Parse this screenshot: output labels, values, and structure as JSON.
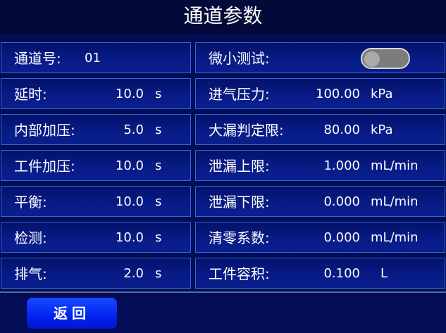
{
  "title": "通道参数",
  "left": [
    {
      "label": "通道号:",
      "value": "01",
      "unit": ""
    },
    {
      "label": "延时:",
      "value": "10.0",
      "unit": "s"
    },
    {
      "label": "内部加压:",
      "value": "5.0",
      "unit": "s"
    },
    {
      "label": "工件加压:",
      "value": "10.0",
      "unit": "s"
    },
    {
      "label": "平衡:",
      "value": "10.0",
      "unit": "s"
    },
    {
      "label": "检测:",
      "value": "10.0",
      "unit": "s"
    },
    {
      "label": "排气:",
      "value": "2.0",
      "unit": "s"
    }
  ],
  "right": [
    {
      "label": "微小测试:",
      "toggle": false
    },
    {
      "label": "进气压力:",
      "value": "100.00",
      "unit": "kPa"
    },
    {
      "label": "大漏判定限:",
      "value": "80.00",
      "unit": "kPa"
    },
    {
      "label": "泄漏上限:",
      "value": "1.000",
      "unit": "mL/min"
    },
    {
      "label": "泄漏下限:",
      "value": "0.000",
      "unit": "mL/min"
    },
    {
      "label": "清零系数:",
      "value": "0.000",
      "unit": "mL/min"
    },
    {
      "label": "工件容积:",
      "value": "0.100",
      "unit": "L"
    }
  ],
  "back_button": "返回"
}
